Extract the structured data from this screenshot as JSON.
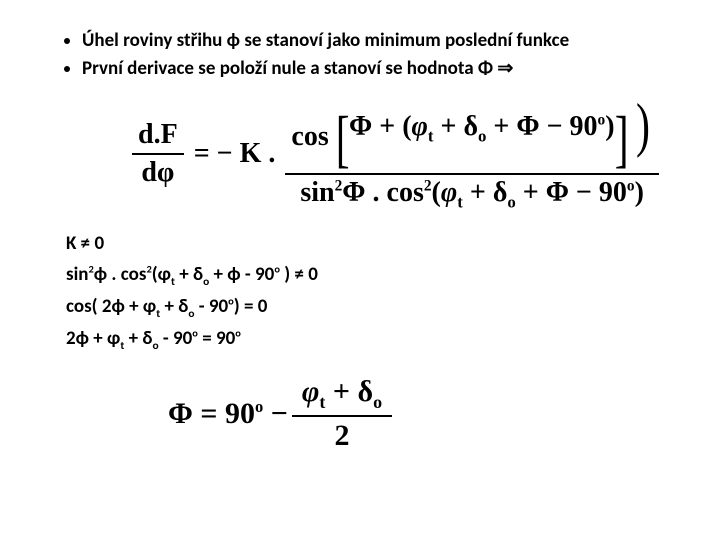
{
  "bullets": [
    "Úhel roviny střihu  ϕ  se stanoví jako minimum poslední funkce",
    "První derivace se položí nule a stanoví se hodnota Φ ⇒"
  ],
  "eq1": {
    "lhs_num": "d.F",
    "lhs_den": "dφ",
    "rhs_lead": "= − K .",
    "num_inner": "Φ + (φₜ + δₒ + Φ − 90°)",
    "den_part1": "sin",
    "den_part2": "Φ . cos",
    "den_arg": "(φₜ + δₒ + Φ − 90°)"
  },
  "lines": {
    "l1": "K ≠ 0",
    "l2": "sin²ϕ . cos²(φₜ + δₒ + ϕ - 90° ) ≠ 0",
    "l2_pre": "sin",
    "l2_mid": "ϕ . cos",
    "l2_arg": "(φ",
    "l2_t": "t",
    "l2_plus1": " + δ",
    "l2_o": "o",
    "l2_tail": " + ϕ - 90",
    "l2_deg": "o",
    "l2_end": " ) ≠ 0",
    "l3_pre": "cos( 2ϕ + φ",
    "l3_tail": " - 90",
    "l3_end": ") = 0",
    "l4_pre": "2ϕ + φ",
    "l4_tail": " - 90",
    "l4_end": " = 90"
  },
  "result": {
    "lhs": "Φ = 90",
    "deg": "o",
    "minus": " − ",
    "num_a": "φ",
    "num_t": "t",
    "num_plus": " + δ",
    "num_o": "o",
    "den": "2"
  },
  "colors": {
    "text": "#000000",
    "bg": "#ffffff"
  },
  "typography": {
    "bullet_fontsize": 19,
    "eq_fontsize": 28,
    "result_fontsize": 30
  }
}
